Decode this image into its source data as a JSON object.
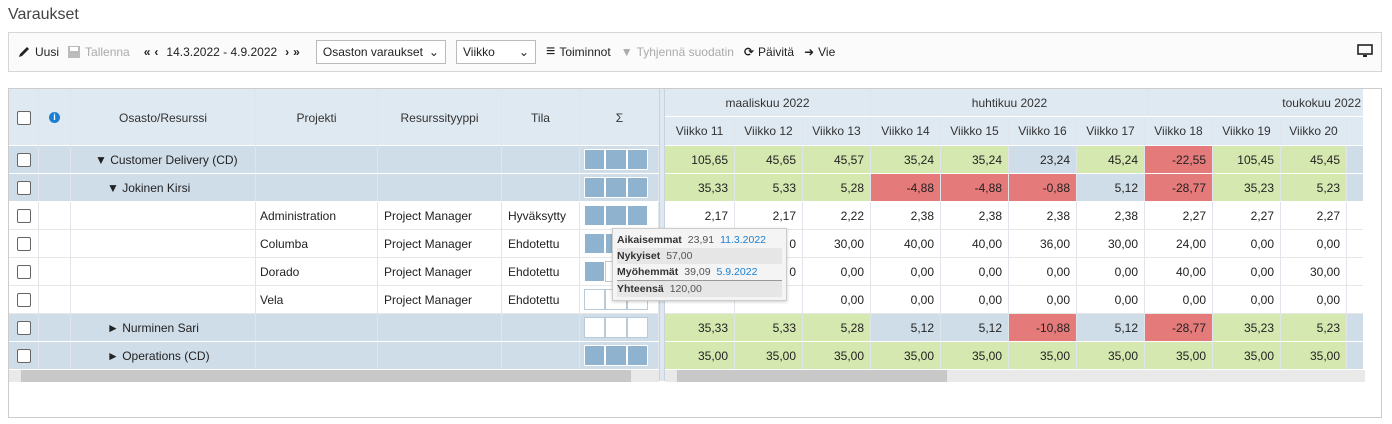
{
  "title": "Varaukset",
  "toolbar": {
    "new_label": "Uusi",
    "save_label": "Tallenna",
    "date_range": "14.3.2022 - 4.9.2022",
    "view_select": "Osaston varaukset",
    "period_select": "Viikko",
    "actions_label": "Toiminnot",
    "clear_filter_label": "Tyhjennä suodatin",
    "refresh_label": "Päivitä",
    "export_label": "Vie"
  },
  "columns": {
    "osasto": "Osasto/Resurssi",
    "projekti": "Projekti",
    "resurssityyppi": "Resurssityyppi",
    "tila": "Tila",
    "sigma": "Σ"
  },
  "months": [
    "maaliskuu 2022",
    "huhtikuu 2022",
    "toukokuu 2022"
  ],
  "weeks": [
    "Viikko 11",
    "Viikko 12",
    "Viikko 13",
    "Viikko 14",
    "Viikko 15",
    "Viikko 16",
    "Viikko 17",
    "Viikko 18",
    "Viikko 19",
    "Viikko 20"
  ],
  "rows": [
    {
      "name": "▼ Customer Delivery (CD)",
      "indent": 1,
      "type": "grp",
      "projekti": "",
      "resurssityyppi": "",
      "tila": "",
      "values": [
        "105,65",
        "45,65",
        "45,57",
        "35,24",
        "35,24",
        "23,24",
        "45,24",
        "-22,55",
        "105,45",
        "45,45"
      ],
      "colors": [
        "green",
        "green",
        "green",
        "green",
        "green",
        "blue",
        "green",
        "red",
        "green",
        "green"
      ]
    },
    {
      "name": "▼ Jokinen Kirsi",
      "indent": 2,
      "type": "grp",
      "projekti": "",
      "resurssityyppi": "",
      "tila": "",
      "values": [
        "35,33",
        "5,33",
        "5,28",
        "-4,88",
        "-4,88",
        "-0,88",
        "5,12",
        "-28,77",
        "35,23",
        "5,23"
      ],
      "colors": [
        "green",
        "green",
        "green",
        "red",
        "red",
        "red",
        "blue",
        "red",
        "green",
        "green"
      ]
    },
    {
      "name": "",
      "indent": 0,
      "type": "plain",
      "projekti": "Administration",
      "resurssityyppi": "Project Manager",
      "tila": "Hyväksytty",
      "values": [
        "2,17",
        "2,17",
        "2,22",
        "2,38",
        "2,38",
        "2,38",
        "2,38",
        "2,27",
        "2,27",
        "2,27"
      ],
      "colors": [
        "white",
        "white",
        "white",
        "white",
        "white",
        "white",
        "white",
        "white",
        "white",
        "white"
      ]
    },
    {
      "name": "",
      "indent": 0,
      "type": "plain",
      "projekti": "Columba",
      "resurssityyppi": "Project Manager",
      "tila": "Ehdotettu",
      "values": [
        "",
        "0",
        "30,00",
        "40,00",
        "40,00",
        "36,00",
        "30,00",
        "24,00",
        "0,00",
        "0,00"
      ],
      "colors": [
        "white",
        "white",
        "white",
        "white",
        "white",
        "white",
        "white",
        "white",
        "white",
        "white"
      ]
    },
    {
      "name": "",
      "indent": 0,
      "type": "plain",
      "projekti": "Dorado",
      "resurssityyppi": "Project Manager",
      "tila": "Ehdotettu",
      "values": [
        "",
        "0",
        "0,00",
        "0,00",
        "0,00",
        "0,00",
        "0,00",
        "40,00",
        "0,00",
        "30,00"
      ],
      "colors": [
        "white",
        "white",
        "white",
        "white",
        "white",
        "white",
        "white",
        "white",
        "white",
        "white"
      ]
    },
    {
      "name": "",
      "indent": 0,
      "type": "plain",
      "projekti": "Vela",
      "resurssityyppi": "Project Manager",
      "tila": "Ehdotettu",
      "values": [
        "",
        "",
        "0,00",
        "0,00",
        "0,00",
        "0,00",
        "0,00",
        "0,00",
        "0,00",
        "0,00"
      ],
      "colors": [
        "white",
        "white",
        "white",
        "white",
        "white",
        "white",
        "white",
        "white",
        "white",
        "white"
      ]
    },
    {
      "name": "► Nurminen Sari",
      "indent": 2,
      "type": "grp",
      "projekti": "",
      "resurssityyppi": "",
      "tila": "",
      "values": [
        "35,33",
        "5,33",
        "5,28",
        "5,12",
        "5,12",
        "-10,88",
        "5,12",
        "-28,77",
        "35,23",
        "5,23"
      ],
      "colors": [
        "green",
        "green",
        "green",
        "blue",
        "blue",
        "red",
        "blue",
        "red",
        "green",
        "green"
      ]
    },
    {
      "name": "► Operations (CD)",
      "indent": 2,
      "type": "grp",
      "projekti": "",
      "resurssityyppi": "",
      "tila": "",
      "values": [
        "35,00",
        "35,00",
        "35,00",
        "35,00",
        "35,00",
        "35,00",
        "35,00",
        "35,00",
        "35,00",
        "35,00"
      ],
      "colors": [
        "green",
        "green",
        "green",
        "green",
        "green",
        "green",
        "green",
        "green",
        "green",
        "green"
      ]
    }
  ],
  "sigma_fill": [
    "full",
    "full",
    "full",
    "full",
    "partial",
    "empty",
    "empty",
    "full",
    "empty"
  ],
  "tooltip": {
    "aikaisemmat_label": "Aikaisemmat",
    "aikaisemmat_value": "23,91",
    "aikaisemmat_date": "11.3.2022",
    "nykyiset_label": "Nykyiset",
    "nykyiset_value": "57,00",
    "myohemmat_label": "Myöhemmät",
    "myohemmat_value": "39,09",
    "myohemmat_date": "5.9.2022",
    "yhteensa_label": "Yhteensä",
    "yhteensa_value": "120,00"
  }
}
